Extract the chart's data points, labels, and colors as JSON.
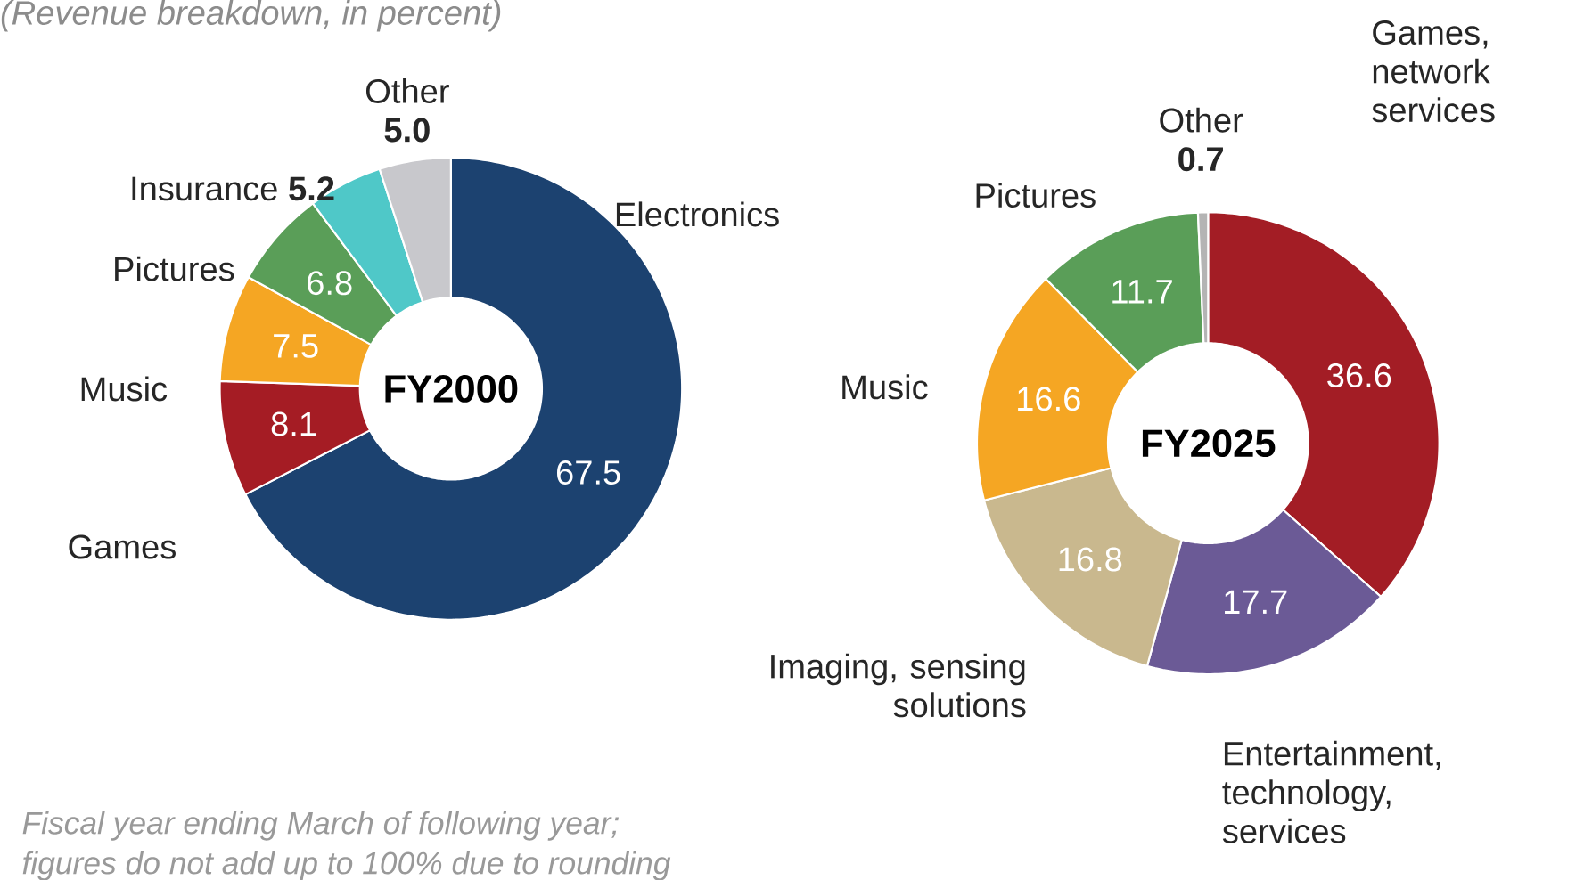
{
  "chart_data": [
    {
      "type": "donut",
      "title": "FY2000",
      "categories": [
        "Electronics",
        "Games",
        "Music",
        "Pictures",
        "Insurance",
        "Other"
      ],
      "values": [
        67.5,
        8.1,
        7.5,
        6.8,
        5.2,
        5.0
      ],
      "value_labels": [
        "67.5",
        "8.1",
        "7.5",
        "6.8",
        "5.2",
        "5.0"
      ],
      "colors": [
        "#1c4270",
        "#a51c24",
        "#f5a623",
        "#5a9e58",
        "#4fc8c8",
        "#c8c8cc"
      ],
      "annotations": [
        "(Revenue breakdown, in percent)",
        "Fiscal year ending March of following year;",
        "figures do not add up to 100% due to rounding"
      ]
    },
    {
      "type": "donut",
      "title": "FY2025",
      "categories": [
        "Games, network services",
        "Entertainment, technology, services",
        "Imaging, sensing solutions",
        "Music",
        "Pictures",
        "Other"
      ],
      "values": [
        36.6,
        17.7,
        16.8,
        16.6,
        11.7,
        0.7
      ],
      "value_labels": [
        "36.6",
        "17.7",
        "16.8",
        "16.6",
        "11.7",
        "0.7"
      ],
      "colors": [
        "#a31d25",
        "#6b5a96",
        "#c9b88e",
        "#f5a623",
        "#5a9e58",
        "#b4b4b4"
      ]
    }
  ]
}
